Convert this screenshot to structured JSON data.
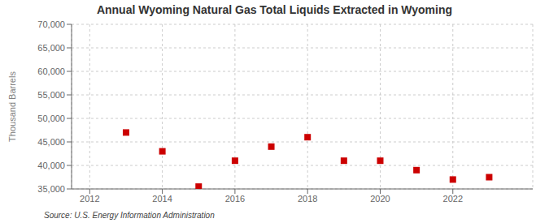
{
  "chart_data": {
    "type": "scatter",
    "title": "Annual Wyoming Natural Gas Total Liquids Extracted in Wyoming",
    "ylabel": "Thousand Barrels",
    "annotations": [
      "Source: U.S. Energy Information Administration"
    ],
    "x": [
      2013,
      2014,
      2015,
      2016,
      2017,
      2018,
      2019,
      2020,
      2021,
      2022,
      2023
    ],
    "values": [
      47000,
      43000,
      35500,
      41000,
      44000,
      46000,
      41000,
      41000,
      39000,
      37000,
      37500
    ],
    "color": "#cc0000",
    "marker": "square",
    "xlim": [
      2011.5,
      2024.2
    ],
    "xticks": [
      2012,
      2014,
      2016,
      2018,
      2020,
      2022
    ],
    "ylim": [
      35000,
      70000
    ],
    "yticks": [
      {
        "value": 35000,
        "label": "35,000"
      },
      {
        "value": 40000,
        "label": "40,000"
      },
      {
        "value": 45000,
        "label": "45,000"
      },
      {
        "value": 50000,
        "label": "50,000"
      },
      {
        "value": 55000,
        "label": "55,000"
      },
      {
        "value": 60000,
        "label": "60,000"
      },
      {
        "value": 65000,
        "label": "65,000"
      },
      {
        "value": 70000,
        "label": "70,000"
      }
    ],
    "grid": true
  }
}
